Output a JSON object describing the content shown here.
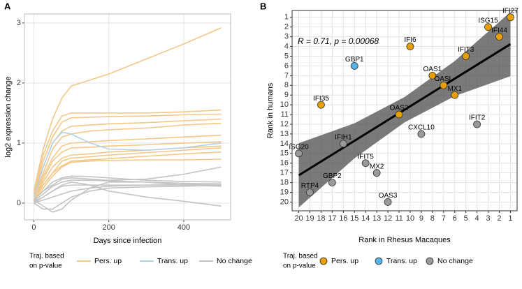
{
  "chart_data": [
    {
      "type": "line",
      "panel": "A",
      "x_label": "Days since infection",
      "y_label": "log2 expression change",
      "x": [
        0,
        25,
        50,
        75,
        100,
        150,
        200,
        300,
        400,
        500
      ],
      "xlim": [
        -25,
        525
      ],
      "xticks": [
        0,
        200,
        400
      ],
      "ylim": [
        -0.28,
        3.15
      ],
      "yticks": [
        0,
        1,
        2,
        3
      ],
      "grid": true,
      "legend_title": [
        "Traj. based",
        "on p-value"
      ],
      "series": [
        {
          "name": "Pers. up",
          "color": "#f3c888",
          "values": [
            [
              0.2,
              0.9,
              1.4,
              1.75,
              1.95,
              2.05,
              2.15,
              2.4,
              2.65,
              2.92
            ],
            [
              0.15,
              0.8,
              1.2,
              1.45,
              1.5,
              1.5,
              1.5,
              1.5,
              1.52,
              1.55
            ],
            [
              0.1,
              0.7,
              1.1,
              1.35,
              1.42,
              1.43,
              1.44,
              1.45,
              1.47,
              1.48
            ],
            [
              0.1,
              0.6,
              1.0,
              1.2,
              1.28,
              1.3,
              1.32,
              1.34,
              1.37,
              1.4
            ],
            [
              0.1,
              0.5,
              0.9,
              1.1,
              1.15,
              1.2,
              1.22,
              1.25,
              1.3,
              1.33
            ],
            [
              0.1,
              0.45,
              0.75,
              0.95,
              1.0,
              1.02,
              1.04,
              1.07,
              1.1,
              1.13
            ],
            [
              0.05,
              0.4,
              0.7,
              0.85,
              0.92,
              0.93,
              0.95,
              0.97,
              1.0,
              1.02
            ],
            [
              0.05,
              0.35,
              0.6,
              0.75,
              0.8,
              0.82,
              0.85,
              0.88,
              0.92,
              0.95
            ],
            [
              0.05,
              0.3,
              0.5,
              0.7,
              0.75,
              0.77,
              0.8,
              0.84,
              0.88,
              0.92
            ],
            [
              0.05,
              0.3,
              0.5,
              0.62,
              0.7,
              0.72,
              0.74,
              0.78,
              0.82,
              0.85
            ],
            [
              0.02,
              0.25,
              0.45,
              0.6,
              0.68,
              0.7,
              0.71,
              0.72,
              0.72,
              0.73
            ]
          ]
        },
        {
          "name": "Trans. up",
          "color": "#b3d1ea",
          "values": [
            [
              0.1,
              0.6,
              1.0,
              1.18,
              1.15,
              1.0,
              0.9,
              0.88,
              0.92,
              1.0
            ]
          ]
        },
        {
          "name": "No change",
          "color": "#c4c4c4",
          "values": [
            [
              0.05,
              0.2,
              0.3,
              0.4,
              0.42,
              0.4,
              0.38,
              0.4,
              0.48,
              0.6
            ],
            [
              0.05,
              0.2,
              0.35,
              0.42,
              0.45,
              0.44,
              0.42,
              0.38,
              0.36,
              0.35
            ],
            [
              0.03,
              0.15,
              0.28,
              0.35,
              0.38,
              0.38,
              0.37,
              0.35,
              0.33,
              0.32
            ],
            [
              0.0,
              0.1,
              0.2,
              0.28,
              0.3,
              0.3,
              0.3,
              0.3,
              0.3,
              0.3
            ],
            [
              0.05,
              -0.05,
              -0.15,
              -0.1,
              0.05,
              0.25,
              0.35,
              0.35,
              0.3,
              0.28
            ],
            [
              0.0,
              -0.1,
              -0.1,
              0.0,
              0.1,
              0.2,
              0.25,
              0.27,
              0.28,
              0.3
            ],
            [
              0.02,
              0.1,
              0.2,
              0.3,
              0.35,
              0.3,
              0.2,
              0.1,
              0.03,
              -0.05
            ],
            [
              0.0,
              0.05,
              0.1,
              0.15,
              0.2,
              0.25,
              0.28,
              0.3,
              0.31,
              0.3
            ]
          ]
        }
      ]
    },
    {
      "type": "scatter",
      "panel": "B",
      "x_label": "Rank in Rhesus Macaques",
      "y_label": "Rank in humans",
      "annotation": "R = 0.71, p = 0.00068",
      "xlim": [
        20.6,
        0.4
      ],
      "xticks": [
        1,
        2,
        3,
        4,
        5,
        6,
        7,
        8,
        9,
        10,
        11,
        12,
        13,
        14,
        15,
        16,
        17,
        18,
        19,
        20
      ],
      "ylim": [
        20.9,
        0.3
      ],
      "yticks": [
        1,
        2,
        3,
        4,
        5,
        6,
        7,
        8,
        9,
        10,
        11,
        12,
        13,
        14,
        15,
        16,
        17,
        18,
        19,
        20
      ],
      "grid": true,
      "legend_title": [
        "Traj. based",
        "on p-value"
      ],
      "fit": {
        "x": [
          20,
          1
        ],
        "y": [
          17.25,
          3.76
        ]
      },
      "band": {
        "x": [
          20,
          15,
          10.5,
          6,
          1
        ],
        "lo": [
          13.95,
          11.9,
          9.2,
          5.5,
          0.46
        ],
        "hi": [
          20.55,
          15.5,
          11.8,
          9.1,
          7.06
        ]
      },
      "series": [
        {
          "name": "Pers. up",
          "color": "#e69f00",
          "labels": [
            "IFI27",
            "ISG15",
            "IFI44",
            "IFI6",
            "IFIT3",
            "OAS1",
            "OASL",
            "MX1",
            "IFI35",
            "OAS2"
          ],
          "x": [
            1,
            3,
            2,
            10,
            5,
            8,
            7,
            6,
            18,
            11
          ],
          "y": [
            1,
            2,
            3,
            4,
            5,
            7,
            8,
            9,
            10,
            11
          ]
        },
        {
          "name": "Trans. up",
          "color": "#56b4e9",
          "labels": [
            "GBP1"
          ],
          "x": [
            15
          ],
          "y": [
            6
          ]
        },
        {
          "name": "No change",
          "color": "#999999",
          "labels": [
            "IFIT2",
            "CXCL10",
            "IFIH1",
            "ISG20",
            "IFIT5",
            "MX2",
            "GBP2",
            "RTP4",
            "OAS3"
          ],
          "x": [
            4,
            9,
            16,
            20,
            14,
            13,
            17,
            19,
            12
          ],
          "y": [
            12,
            13,
            14,
            15,
            16,
            17,
            18,
            19,
            20
          ]
        }
      ]
    }
  ]
}
